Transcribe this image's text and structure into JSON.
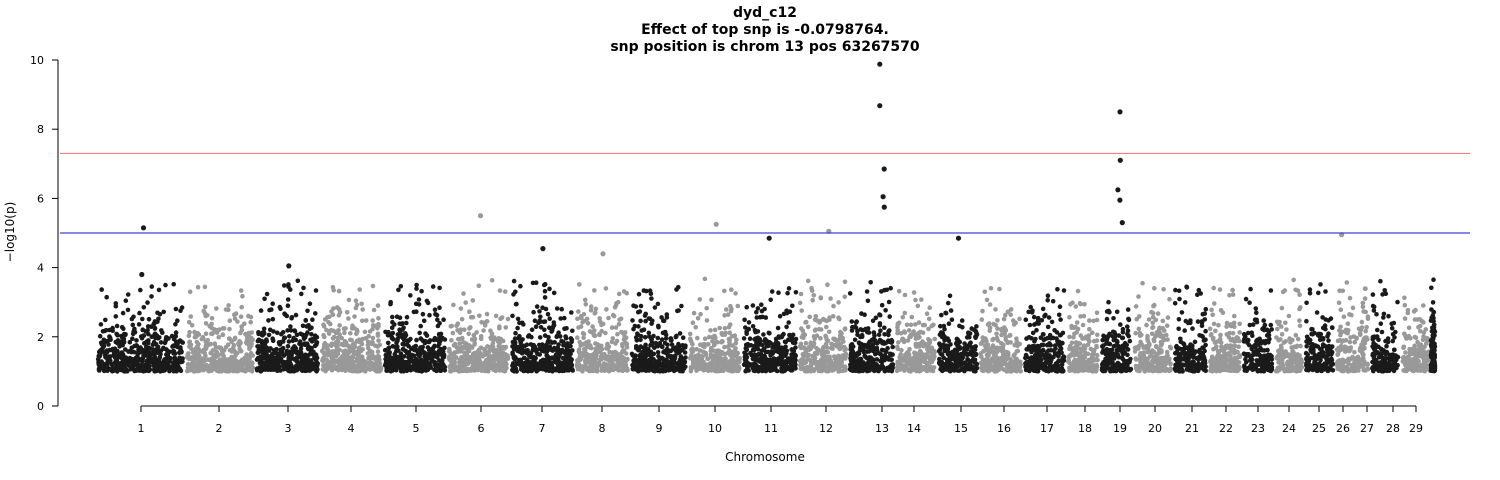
{
  "chart_data": {
    "type": "scatter",
    "title": "dyd_c12",
    "subtitle_lines": [
      "Effect of top snp is -0.0798764.",
      "snp position is chrom 13 pos 63267570"
    ],
    "xlabel": "Chromosome",
    "ylabel": "−log10(p)",
    "ylim": [
      0,
      10
    ],
    "yticks": [
      0,
      2,
      4,
      6,
      8,
      10
    ],
    "chromosomes": [
      "1",
      "2",
      "3",
      "4",
      "5",
      "6",
      "7",
      "8",
      "9",
      "10",
      "11",
      "12",
      "13",
      "14",
      "15",
      "16",
      "17",
      "18",
      "19",
      "20",
      "21",
      "22",
      "23",
      "24",
      "25",
      "26",
      "27",
      "28",
      "29"
    ],
    "threshold_lines": [
      {
        "value": 7.3,
        "color": "#f08080"
      },
      {
        "value": 5.0,
        "color": "#4040e0"
      }
    ],
    "colors": {
      "odd": "#1a1a1a",
      "even": "#999999"
    },
    "notable_points": [
      {
        "chrom": "1",
        "y": 5.15
      },
      {
        "chrom": "1",
        "y": 3.8
      },
      {
        "chrom": "3",
        "y": 4.05
      },
      {
        "chrom": "6",
        "y": 5.5
      },
      {
        "chrom": "7",
        "y": 4.55
      },
      {
        "chrom": "8",
        "y": 4.4
      },
      {
        "chrom": "10",
        "y": 5.25
      },
      {
        "chrom": "11",
        "y": 4.85
      },
      {
        "chrom": "12",
        "y": 5.05
      },
      {
        "chrom": "13",
        "y": 9.88
      },
      {
        "chrom": "13",
        "y": 8.68
      },
      {
        "chrom": "13",
        "y": 6.85
      },
      {
        "chrom": "13",
        "y": 6.05
      },
      {
        "chrom": "13",
        "y": 5.75
      },
      {
        "chrom": "15",
        "y": 4.85
      },
      {
        "chrom": "19",
        "y": 8.5
      },
      {
        "chrom": "19",
        "y": 7.1
      },
      {
        "chrom": "19",
        "y": 6.25
      },
      {
        "chrom": "19",
        "y": 5.95
      },
      {
        "chrom": "19",
        "y": 5.3
      },
      {
        "chrom": "26",
        "y": 4.95
      }
    ]
  }
}
